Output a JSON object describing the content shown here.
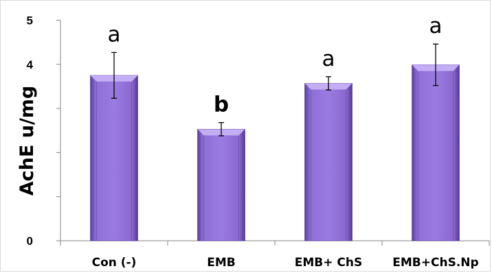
{
  "chart_data": {
    "type": "bar",
    "title": "",
    "xlabel": "",
    "ylabel": "AchE u/mg",
    "categories": [
      "Con (-)",
      "EMB",
      "EMB+ ChS",
      "EMB+ChS.Np"
    ],
    "values": [
      3.75,
      2.53,
      3.57,
      3.99
    ],
    "errors": [
      0.52,
      0.15,
      0.15,
      0.47
    ],
    "significance_labels": [
      "a",
      "b",
      "a",
      "a"
    ],
    "significance_bold": [
      false,
      true,
      false,
      false
    ],
    "ylim": [
      0,
      5
    ],
    "y_tick_labels": [
      "0",
      "",
      "",
      "",
      "4",
      "5"
    ],
    "grid": false,
    "legend": "none",
    "bar_color": "#8f6fd6",
    "bar_top_color": "#c3aef5",
    "bar_edge_color": "#4b2f8a"
  }
}
